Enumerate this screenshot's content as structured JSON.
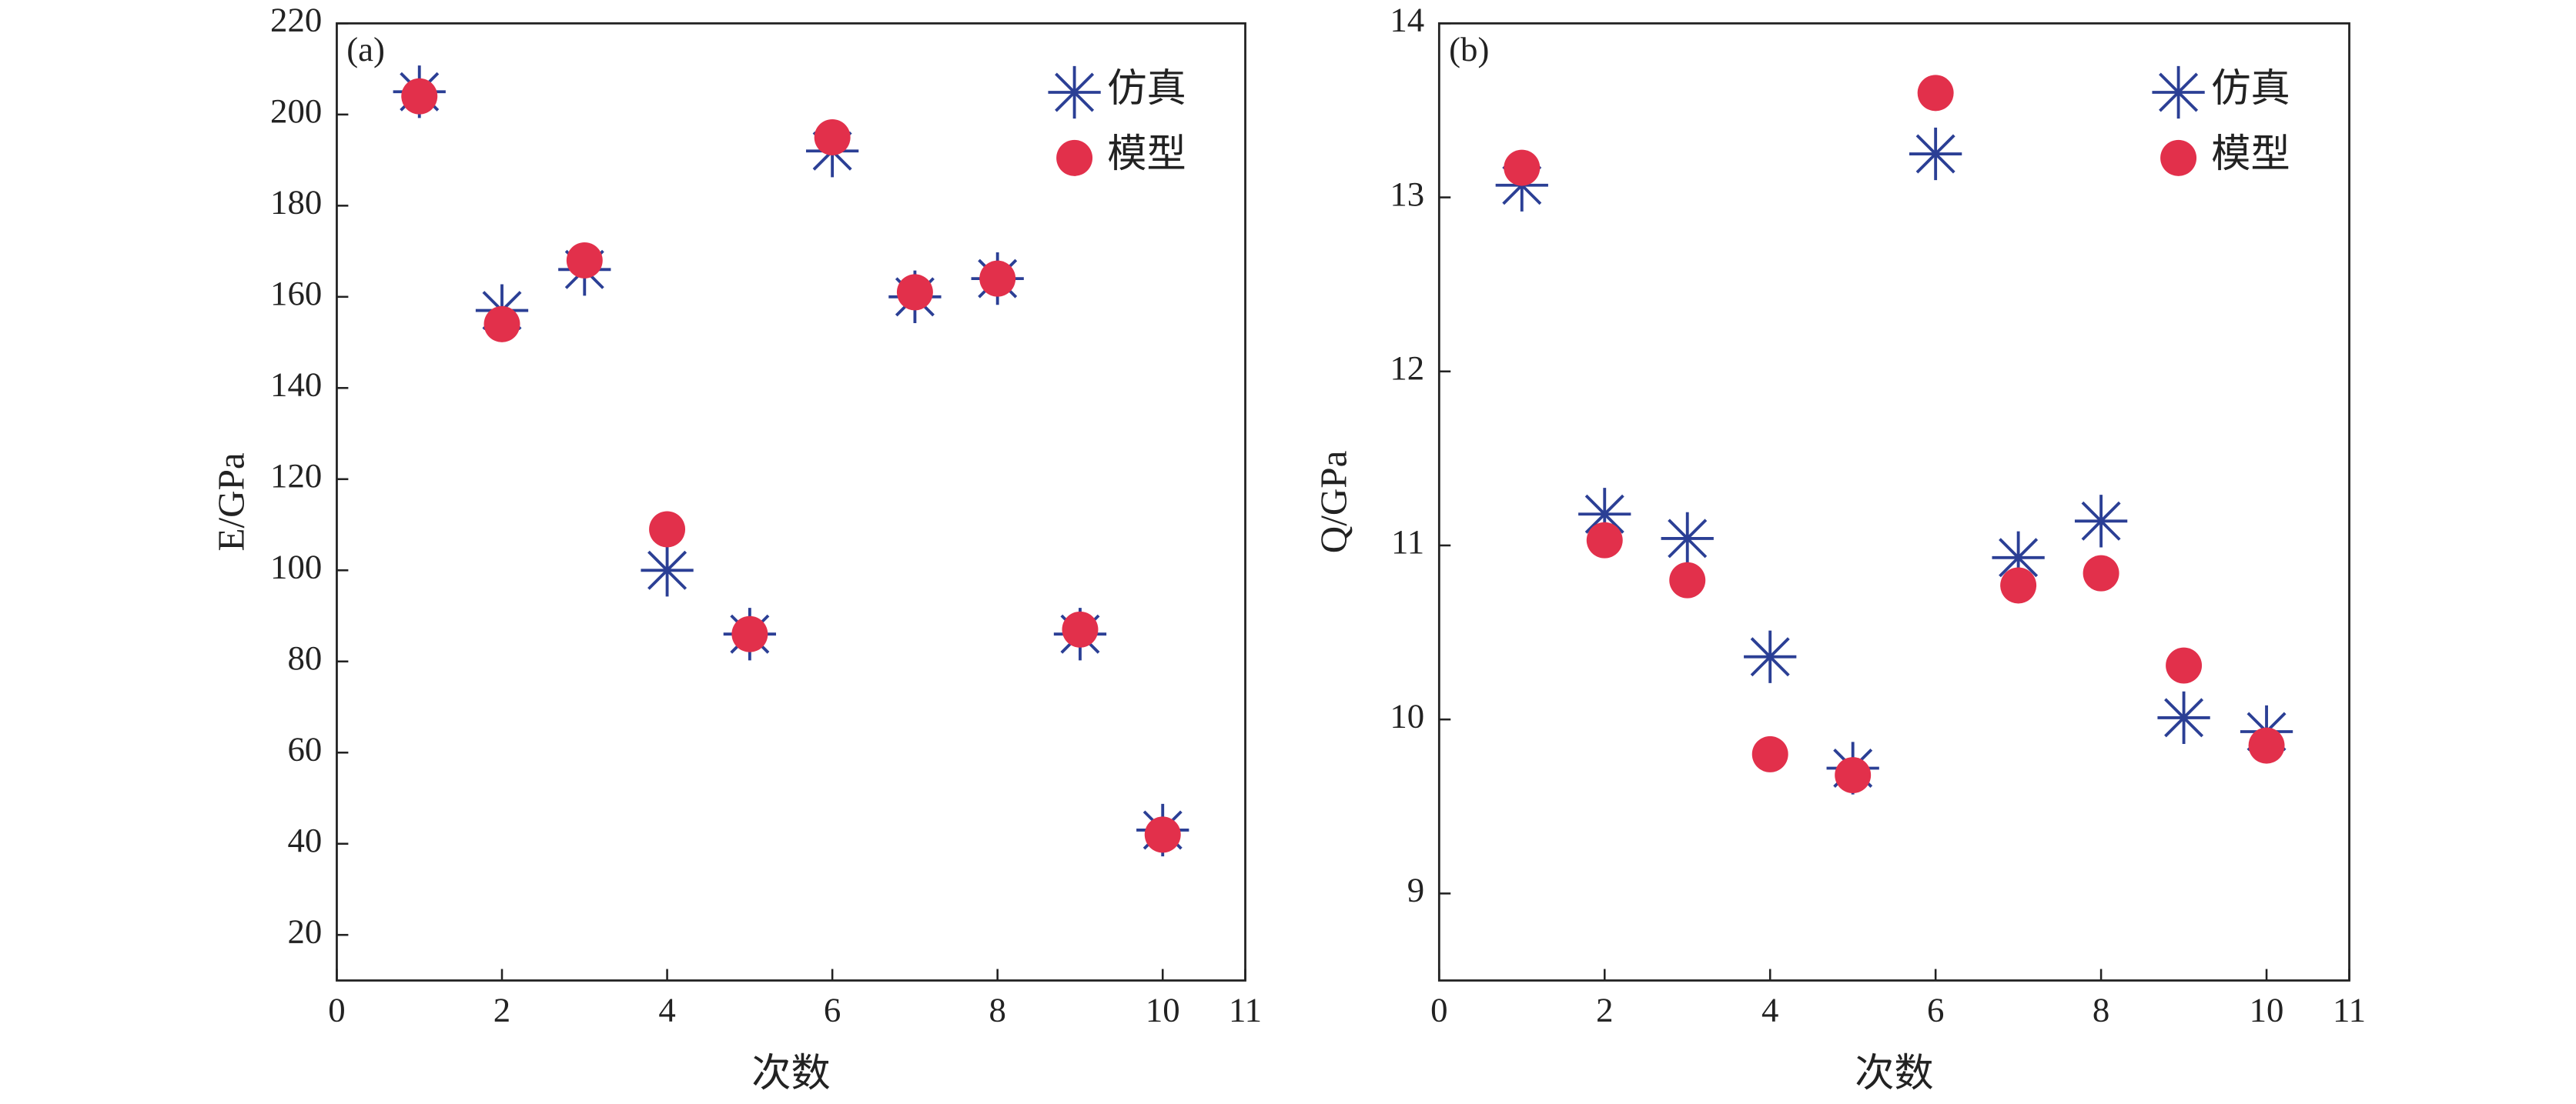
{
  "chart_data": [
    {
      "type": "scatter",
      "annotation": "(a)",
      "xlabel": "次数",
      "ylabel": "E/GPa",
      "xlim": [
        0,
        11
      ],
      "xticks": [
        0,
        2,
        4,
        6,
        8,
        10,
        11
      ],
      "ylim": [
        10,
        220
      ],
      "yticks": [
        20,
        40,
        60,
        80,
        100,
        120,
        140,
        160,
        180,
        200,
        220
      ],
      "x": [
        1,
        2,
        3,
        4,
        5,
        6,
        7,
        8,
        9,
        10
      ],
      "legend": "upper right",
      "series": [
        {
          "name": "仿真",
          "color": "#2b3f95",
          "marker": "asterisk",
          "values": [
            205,
            157,
            166,
            100,
            86,
            192,
            160,
            164,
            86,
            43
          ]
        },
        {
          "name": "模型",
          "color": "#e2304b",
          "marker": "circle",
          "values": [
            204,
            154,
            168,
            109,
            86,
            195,
            161,
            164,
            87,
            42
          ]
        }
      ]
    },
    {
      "type": "scatter",
      "annotation": "(b)",
      "xlabel": "次数",
      "ylabel": "Q/GPa",
      "xlim": [
        0,
        11
      ],
      "xticks": [
        0,
        2,
        4,
        6,
        8,
        10,
        11
      ],
      "ylim": [
        8.5,
        14
      ],
      "yticks": [
        9,
        10,
        11,
        12,
        13,
        14
      ],
      "x": [
        1,
        2,
        3,
        4,
        5,
        6,
        7,
        8,
        9,
        10
      ],
      "legend": "upper right",
      "series": [
        {
          "name": "仿真",
          "color": "#2b3f95",
          "marker": "asterisk",
          "values": [
            13.07,
            11.18,
            11.04,
            10.36,
            9.72,
            13.25,
            10.93,
            11.14,
            10.01,
            9.93
          ]
        },
        {
          "name": "模型",
          "color": "#e2304b",
          "marker": "circle",
          "values": [
            13.17,
            11.03,
            10.8,
            9.8,
            9.68,
            13.6,
            10.77,
            10.84,
            10.31,
            9.85
          ]
        }
      ]
    }
  ]
}
